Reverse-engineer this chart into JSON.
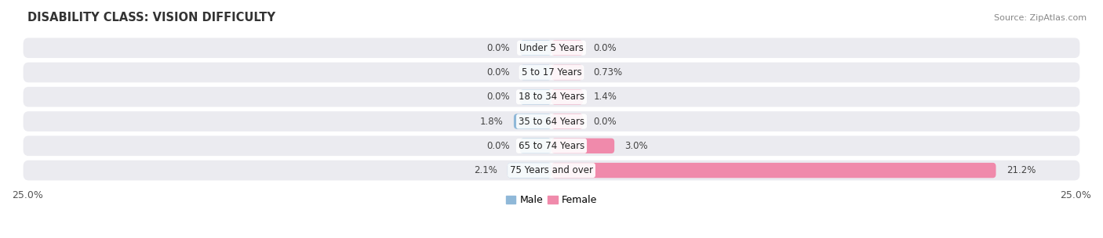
{
  "title": "DISABILITY CLASS: VISION DIFFICULTY",
  "source": "Source: ZipAtlas.com",
  "categories": [
    "Under 5 Years",
    "5 to 17 Years",
    "18 to 34 Years",
    "35 to 64 Years",
    "65 to 74 Years",
    "75 Years and over"
  ],
  "male_values": [
    0.0,
    0.0,
    0.0,
    1.8,
    0.0,
    2.1
  ],
  "female_values": [
    0.0,
    0.73,
    1.4,
    0.0,
    3.0,
    21.2
  ],
  "male_labels": [
    "0.0%",
    "0.0%",
    "0.0%",
    "1.8%",
    "0.0%",
    "2.1%"
  ],
  "female_labels": [
    "0.0%",
    "0.73%",
    "1.4%",
    "0.0%",
    "3.0%",
    "21.2%"
  ],
  "xlim": 25.0,
  "min_bar_width": 1.5,
  "male_color": "#8fb8d8",
  "female_color": "#f08aab",
  "row_bg_color": "#ebebf0",
  "title_fontsize": 10.5,
  "label_fontsize": 8.5,
  "cat_fontsize": 8.5,
  "axis_label_fontsize": 9,
  "legend_fontsize": 9,
  "source_fontsize": 8
}
